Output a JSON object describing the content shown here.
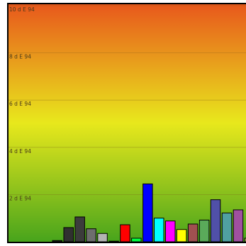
{
  "chart_data": {
    "type": "bar",
    "title": "",
    "xlabel": "",
    "ylabel": "",
    "ylim": [
      0,
      10
    ],
    "yticks": [
      {
        "value": 10,
        "label": "10 d E 94"
      },
      {
        "value": 8,
        "label": "8 d E 94"
      },
      {
        "value": 6,
        "label": "6 d E 94"
      },
      {
        "value": 4,
        "label": "4 d E 94"
      },
      {
        "value": 2,
        "label": "2 d E 94"
      }
    ],
    "grid": true,
    "background_gradient": [
      "#e8581c",
      "#e8e81c",
      "#48a41c"
    ],
    "bars": [
      {
        "value": 0.05,
        "color": "#202020"
      },
      {
        "value": 0.6,
        "color": "#303030"
      },
      {
        "value": 1.05,
        "color": "#3c3c3c"
      },
      {
        "value": 0.55,
        "color": "#6e6e6e"
      },
      {
        "value": 0.35,
        "color": "#b4b4b4"
      },
      {
        "value": 0.0,
        "color": "#c8c8c8"
      },
      {
        "value": 0.72,
        "color": "#ff0000"
      },
      {
        "value": 0.15,
        "color": "#00ff40"
      },
      {
        "value": 2.45,
        "color": "#0000ff"
      },
      {
        "value": 1.0,
        "color": "#00ffff"
      },
      {
        "value": 0.88,
        "color": "#ff00ff"
      },
      {
        "value": 0.52,
        "color": "#ffff00"
      },
      {
        "value": 0.75,
        "color": "#a05050"
      },
      {
        "value": 0.92,
        "color": "#5aaa5a"
      },
      {
        "value": 1.78,
        "color": "#5050a8"
      },
      {
        "value": 1.22,
        "color": "#50a0a0"
      },
      {
        "value": 1.35,
        "color": "#a050a0"
      },
      {
        "value": 0.15,
        "color": "#a0a050"
      }
    ]
  }
}
